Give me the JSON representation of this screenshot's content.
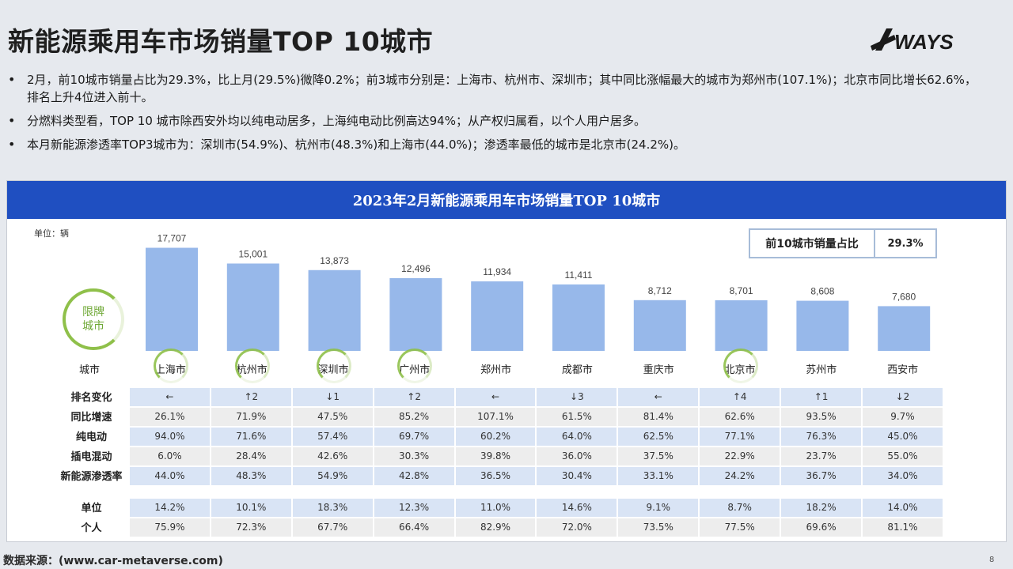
{
  "title": "新能源乘用车市场销量TOP 10城市",
  "logo": {
    "text": "WAYS",
    "icon": "ways-slash-logo"
  },
  "bullets": [
    "2月，前10城市销量占比为29.3%，比上月(29.5%)微降0.2%；前3城市分别是：上海市、杭州市、深圳市；其中同比涨幅最大的城市为郑州市(107.1%)；北京市同比增长62.6%，排名上升4位进入前十。",
    "分燃料类型看，TOP 10 城市除西安外均以纯电动居多，上海纯电动比例高达94%；从产权归属看，以个人用户居多。",
    "本月新能源渗透率TOP3城市为：深圳市(54.9%)、杭州市(48.3%)和上海市(44.0%)；渗透率最低的城市是北京市(24.2%)。"
  ],
  "panel": {
    "title": "2023年2月新能源乘用车市场销量TOP 10城市",
    "unit": "单位：辆",
    "share_label": "前10城市销量占比",
    "share_value": "29.3%",
    "badge_line1": "限牌",
    "badge_line2": "城市",
    "city_header": "城市"
  },
  "chart_data": {
    "type": "bar",
    "title": "2023年2月新能源乘用车市场销量TOP 10城市",
    "ylabel": "单位：辆",
    "categories": [
      "上海市",
      "杭州市",
      "深圳市",
      "广州市",
      "郑州市",
      "成都市",
      "重庆市",
      "北京市",
      "苏州市",
      "西安市"
    ],
    "values": [
      17707,
      15001,
      13873,
      12496,
      11934,
      11411,
      8712,
      8701,
      8608,
      7680
    ],
    "value_labels": [
      "17,707",
      "15,001",
      "13,873",
      "12,496",
      "11,934",
      "11,411",
      "8,712",
      "8,701",
      "8,608",
      "7,680"
    ],
    "ylim": [
      0,
      19000
    ],
    "bar_color": "#97b8ea",
    "highlight_color": "#8fc04a",
    "restricted_cities": [
      "上海市",
      "杭州市",
      "深圳市",
      "广州市",
      "北京市"
    ],
    "grid": false
  },
  "table": [
    {
      "label": "排名变化",
      "style": "blue",
      "values": [
        "←",
        "↑2",
        "↓1",
        "↑2",
        "←",
        "↓3",
        "←",
        "↑4",
        "↑1",
        "↓2"
      ]
    },
    {
      "label": "同比增速",
      "style": "grey",
      "values": [
        "26.1%",
        "71.9%",
        "47.5%",
        "85.2%",
        "107.1%",
        "61.5%",
        "81.4%",
        "62.6%",
        "93.5%",
        "9.7%"
      ]
    },
    {
      "label": "纯电动",
      "style": "blue",
      "values": [
        "94.0%",
        "71.6%",
        "57.4%",
        "69.7%",
        "60.2%",
        "64.0%",
        "62.5%",
        "77.1%",
        "76.3%",
        "45.0%"
      ]
    },
    {
      "label": "插电混动",
      "style": "grey",
      "values": [
        "6.0%",
        "28.4%",
        "42.6%",
        "30.3%",
        "39.8%",
        "36.0%",
        "37.5%",
        "22.9%",
        "23.7%",
        "55.0%"
      ]
    },
    {
      "label": "新能源渗透率",
      "style": "blue",
      "values": [
        "44.0%",
        "48.3%",
        "54.9%",
        "42.8%",
        "36.5%",
        "30.4%",
        "33.1%",
        "24.2%",
        "36.7%",
        "34.0%"
      ]
    },
    {
      "label": "单位",
      "style": "blue",
      "gap": true,
      "values": [
        "14.2%",
        "10.1%",
        "18.3%",
        "12.3%",
        "11.0%",
        "14.6%",
        "9.1%",
        "8.7%",
        "18.2%",
        "14.0%"
      ]
    },
    {
      "label": "个人",
      "style": "grey",
      "values": [
        "75.9%",
        "72.3%",
        "67.7%",
        "66.4%",
        "82.9%",
        "72.0%",
        "73.5%",
        "77.5%",
        "69.6%",
        "81.1%"
      ]
    }
  ],
  "footer": "数据来源：(www.car-metaverse.com)",
  "page_number": "8"
}
